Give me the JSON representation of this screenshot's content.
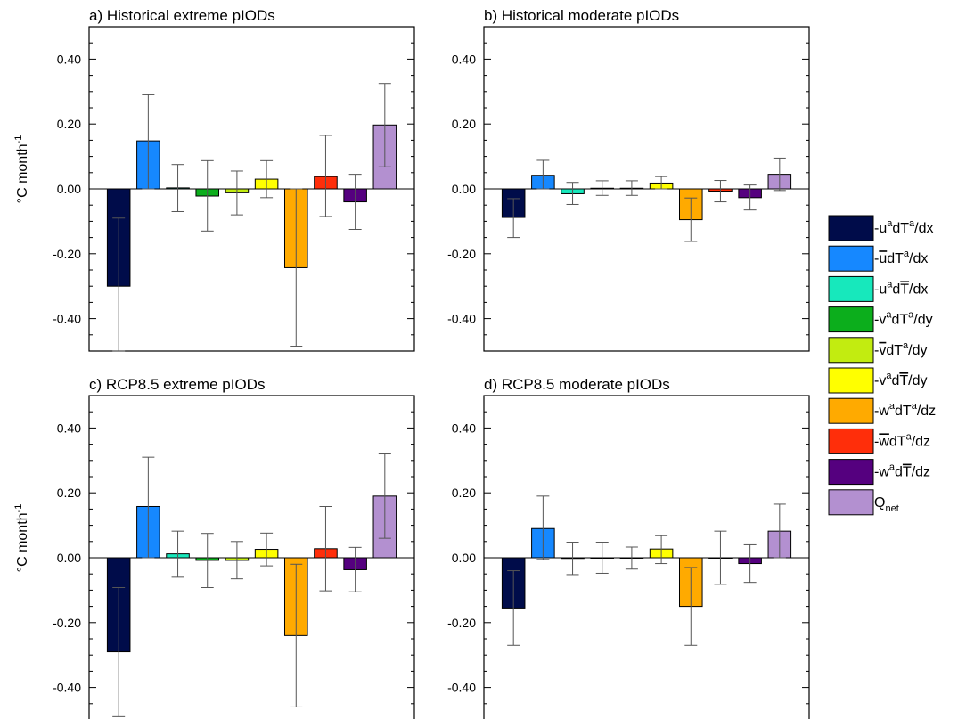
{
  "chart_data": [
    {
      "type": "bar",
      "title": "a) Historical extreme pIODs",
      "ylabel": "°C month-1",
      "ylim": [
        -0.5,
        0.5
      ],
      "yticks": [
        "0.40",
        "0.20",
        "0.00",
        "-0.20",
        "-0.40"
      ],
      "values": [
        -0.3,
        0.148,
        0.003,
        -0.022,
        -0.012,
        0.03,
        -0.243,
        0.038,
        -0.04,
        0.197
      ],
      "errors": [
        [
          -0.5,
          -0.09
        ],
        [
          0.0,
          0.29
        ],
        [
          -0.07,
          0.075
        ],
        [
          -0.13,
          0.087
        ],
        [
          -0.08,
          0.055
        ],
        [
          -0.027,
          0.087
        ],
        [
          -0.485,
          0.0
        ],
        [
          -0.085,
          0.165
        ],
        [
          -0.125,
          0.045
        ],
        [
          0.068,
          0.325
        ]
      ]
    },
    {
      "type": "bar",
      "title": "b) Historical moderate pIODs",
      "ylabel": "",
      "ylim": [
        -0.5,
        0.5
      ],
      "yticks": [
        "0.40",
        "0.20",
        "0.00",
        "-0.20",
        "-0.40"
      ],
      "values": [
        -0.088,
        0.042,
        -0.015,
        0.002,
        0.002,
        0.018,
        -0.095,
        -0.007,
        -0.027,
        0.045
      ],
      "errors": [
        [
          -0.15,
          -0.03
        ],
        [
          0.0,
          0.088
        ],
        [
          -0.048,
          0.02
        ],
        [
          -0.02,
          0.025
        ],
        [
          -0.02,
          0.025
        ],
        [
          0.0,
          0.038
        ],
        [
          -0.162,
          -0.028
        ],
        [
          -0.04,
          0.026
        ],
        [
          -0.065,
          0.012
        ],
        [
          -0.005,
          0.095
        ]
      ]
    },
    {
      "type": "bar",
      "title": "c) RCP8.5 extreme pIODs",
      "ylabel": "°C month-1",
      "ylim": [
        -0.5,
        0.5
      ],
      "yticks": [
        "0.40",
        "0.20",
        "0.00",
        "-0.20",
        "-0.40"
      ],
      "values": [
        -0.29,
        0.158,
        0.012,
        -0.008,
        -0.008,
        0.026,
        -0.24,
        0.028,
        -0.037,
        0.19
      ],
      "errors": [
        [
          -0.49,
          -0.092
        ],
        [
          0.0,
          0.31
        ],
        [
          -0.06,
          0.082
        ],
        [
          -0.092,
          0.075
        ],
        [
          -0.065,
          0.05
        ],
        [
          -0.025,
          0.076
        ],
        [
          -0.46,
          -0.02
        ],
        [
          -0.102,
          0.158
        ],
        [
          -0.105,
          0.032
        ],
        [
          0.06,
          0.32
        ]
      ]
    },
    {
      "type": "bar",
      "title": "d) RCP8.5 moderate pIODs",
      "ylabel": "",
      "ylim": [
        -0.5,
        0.5
      ],
      "yticks": [
        "0.40",
        "0.20",
        "0.00",
        "-0.20",
        "-0.40"
      ],
      "values": [
        -0.155,
        0.09,
        -0.002,
        -0.001,
        -0.001,
        0.027,
        -0.15,
        -0.001,
        -0.018,
        0.082
      ],
      "errors": [
        [
          -0.27,
          -0.04
        ],
        [
          -0.005,
          0.19
        ],
        [
          -0.052,
          0.048
        ],
        [
          -0.048,
          0.048
        ],
        [
          -0.035,
          0.033
        ],
        [
          -0.018,
          0.068
        ],
        [
          -0.27,
          -0.03
        ],
        [
          -0.082,
          0.082
        ],
        [
          -0.076,
          0.04
        ],
        [
          0.0,
          0.165
        ]
      ]
    }
  ],
  "legend": {
    "placement": "right",
    "items": [
      {
        "color": "#000c4a",
        "parts": [
          {
            "t": "-u"
          },
          {
            "t": "a",
            "sup": true
          },
          {
            "t": "dT"
          },
          {
            "t": "a",
            "sup": true
          },
          {
            "t": "/dx"
          }
        ]
      },
      {
        "color": "#1688ff",
        "parts": [
          {
            "t": "-"
          },
          {
            "t": "u",
            "bar": true
          },
          {
            "t": "dT"
          },
          {
            "t": "a",
            "sup": true
          },
          {
            "t": "/dx"
          }
        ]
      },
      {
        "color": "#17e8bc",
        "parts": [
          {
            "t": "-u"
          },
          {
            "t": "a",
            "sup": true
          },
          {
            "t": "d"
          },
          {
            "t": "T",
            "bar": true
          },
          {
            "t": "/dx"
          }
        ]
      },
      {
        "color": "#0cae1c",
        "parts": [
          {
            "t": "-v"
          },
          {
            "t": "a",
            "sup": true
          },
          {
            "t": "dT"
          },
          {
            "t": "a",
            "sup": true
          },
          {
            "t": "/dy"
          }
        ]
      },
      {
        "color": "#c2ec10",
        "parts": [
          {
            "t": "-"
          },
          {
            "t": "v",
            "bar": true
          },
          {
            "t": "dT"
          },
          {
            "t": "a",
            "sup": true
          },
          {
            "t": "/dy"
          }
        ]
      },
      {
        "color": "#ffff00",
        "parts": [
          {
            "t": "-v"
          },
          {
            "t": "a",
            "sup": true
          },
          {
            "t": "d"
          },
          {
            "t": "T",
            "bar": true
          },
          {
            "t": "/dy"
          }
        ]
      },
      {
        "color": "#ffaa00",
        "parts": [
          {
            "t": "-w"
          },
          {
            "t": "a",
            "sup": true
          },
          {
            "t": "dT"
          },
          {
            "t": "a",
            "sup": true
          },
          {
            "t": "/dz"
          }
        ]
      },
      {
        "color": "#ff2e0a",
        "parts": [
          {
            "t": "-"
          },
          {
            "t": "w",
            "bar": true
          },
          {
            "t": "dT"
          },
          {
            "t": "a",
            "sup": true
          },
          {
            "t": "/dz"
          }
        ]
      },
      {
        "color": "#55007f",
        "parts": [
          {
            "t": "-w"
          },
          {
            "t": "a",
            "sup": true
          },
          {
            "t": "d"
          },
          {
            "t": "T",
            "bar": true
          },
          {
            "t": "/dz"
          }
        ]
      },
      {
        "color": "#b390d0",
        "parts": [
          {
            "t": "Q"
          },
          {
            "t": "net",
            "sub": true
          }
        ]
      }
    ]
  }
}
